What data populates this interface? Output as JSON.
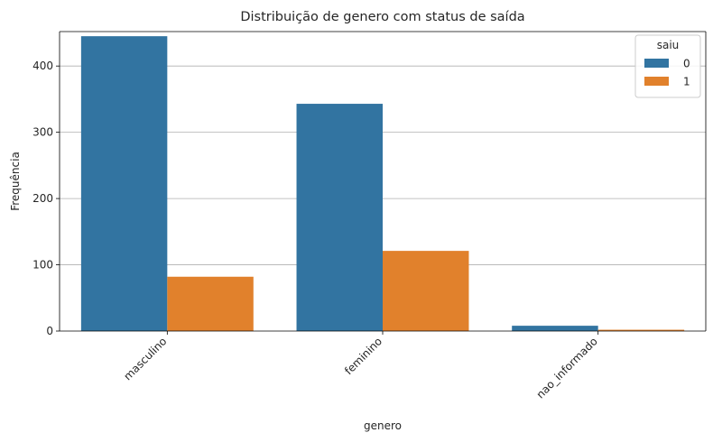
{
  "chart_data": {
    "type": "bar",
    "title": "Distribuição de genero com status de saída",
    "xlabel": "genero",
    "ylabel": "Frequência",
    "categories": [
      "masculino",
      "feminino",
      "nao_informado"
    ],
    "series": [
      {
        "name": "0",
        "values": [
          445,
          343,
          8
        ],
        "color": "#3274a1"
      },
      {
        "name": "1",
        "values": [
          82,
          121,
          2
        ],
        "color": "#e1812c"
      }
    ],
    "ylim": [
      0,
      452
    ],
    "yticks": [
      0,
      100,
      200,
      300,
      400
    ],
    "grid": "horizontal",
    "legend": {
      "title": "saiu",
      "position": "top-right"
    }
  }
}
